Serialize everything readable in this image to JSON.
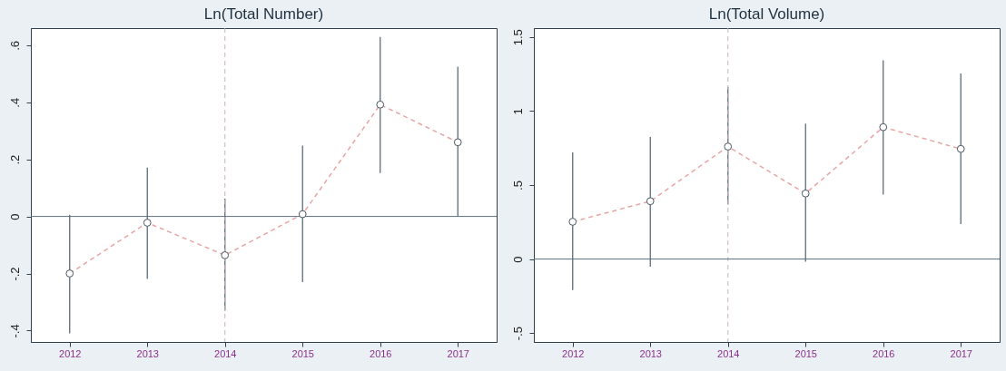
{
  "chart_data": [
    {
      "type": "line",
      "title": "Ln(Total Number)",
      "categories": [
        "2012",
        "2013",
        "2014",
        "2015",
        "2016",
        "2017"
      ],
      "series": [
        {
          "color": "#e8a5a5",
          "line_style": "dashed",
          "marker": "circle",
          "values": [
            -0.2,
            -0.022,
            -0.136,
            0.008,
            0.392,
            0.26
          ],
          "errors": [
            [
              -0.41,
              0.006
            ],
            [
              -0.219,
              0.171
            ],
            [
              -0.33,
              0.062
            ],
            [
              -0.23,
              0.248
            ],
            [
              0.152,
              0.629
            ],
            [
              0,
              0.525
            ]
          ]
        }
      ],
      "ylim": [
        -0.44,
        0.66
      ],
      "yticks": [
        {
          "value": -0.4,
          "label": "-.4"
        },
        {
          "value": -0.2,
          "label": "-.2"
        },
        0,
        {
          "value": 0.2,
          "label": ".2"
        },
        {
          "value": 0.4,
          "label": ".4"
        },
        {
          "value": 0.6,
          "label": ".6"
        }
      ],
      "ref_lines": [
        {
          "axis": "x",
          "value": "2014",
          "line_style": "dashed",
          "color": "#c8b4b4"
        },
        {
          "axis": "y",
          "value": 0,
          "line_style": "solid",
          "color": "#5a7080"
        }
      ],
      "grid": false
    },
    {
      "type": "line",
      "title": "Ln(Total Volume)",
      "categories": [
        "2012",
        "2013",
        "2014",
        "2015",
        "2016",
        "2017"
      ],
      "series": [
        {
          "color": "#e8a5a5",
          "line_style": "dashed",
          "marker": "circle",
          "values": [
            0.252,
            0.391,
            0.76,
            0.443,
            0.891,
            0.744
          ],
          "errors": [
            [
              -0.209,
              0.72
            ],
            [
              -0.052,
              0.825
            ],
            [
              0.369,
              1.163
            ],
            [
              -0.018,
              0.915
            ],
            [
              0.436,
              1.343
            ],
            [
              0.236,
              1.253
            ]
          ]
        }
      ],
      "ylim": [
        -0.56,
        1.56
      ],
      "yticks": [
        {
          "value": -0.5,
          "label": "-.5"
        },
        0,
        {
          "value": 0.5,
          "label": ".5"
        },
        1,
        1.5
      ],
      "ref_lines": [
        {
          "axis": "x",
          "value": "2014",
          "line_style": "dashed",
          "color": "#c8b4b4"
        },
        {
          "axis": "y",
          "value": 0,
          "line_style": "solid",
          "color": "#5a7080"
        }
      ],
      "grid": false
    }
  ]
}
